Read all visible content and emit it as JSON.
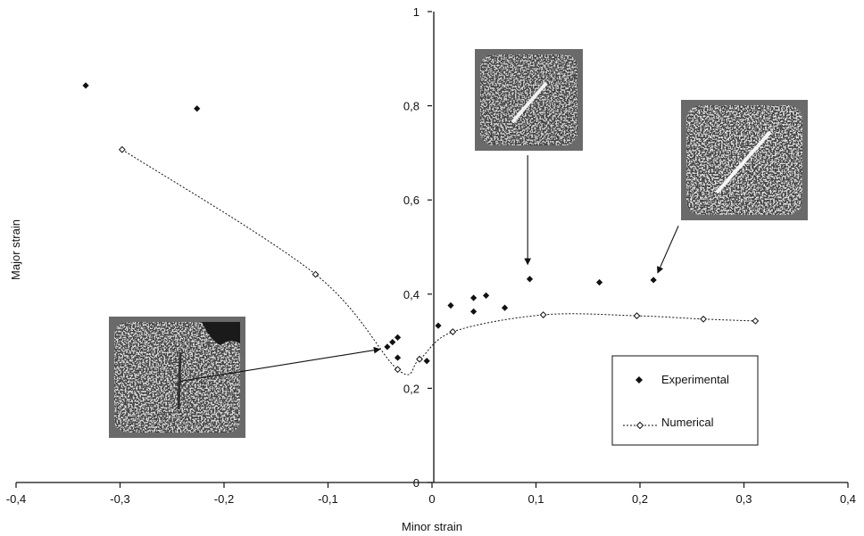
{
  "chart_data": {
    "type": "scatter",
    "title": "",
    "xlabel": "Minor strain",
    "ylabel": "Major strain",
    "xlim": [
      -0.4,
      0.4
    ],
    "ylim": [
      0,
      1
    ],
    "x_ticks": [
      -0.4,
      -0.3,
      -0.2,
      -0.1,
      0,
      0.1,
      0.2,
      0.3,
      0.4
    ],
    "x_tick_labels": [
      "-0,4",
      "-0,3",
      "-0,2",
      "-0,1",
      "0",
      "0,1",
      "0,2",
      "0,3",
      "0,4"
    ],
    "y_ticks": [
      0,
      0.2,
      0.4,
      0.6,
      0.8,
      1
    ],
    "y_tick_labels": [
      "0",
      "0,2",
      "0,4",
      "0,6",
      "0,8",
      "1"
    ],
    "grid": false,
    "legend_position": "bottom-right",
    "series": [
      {
        "name": "Experimental",
        "style": "markers",
        "marker": "filled-diamond",
        "color": "#111111",
        "points": [
          [
            -0.333,
            0.843
          ],
          [
            -0.226,
            0.794
          ],
          [
            -0.043,
            0.288
          ],
          [
            -0.038,
            0.298
          ],
          [
            -0.033,
            0.308
          ],
          [
            -0.033,
            0.265
          ],
          [
            -0.005,
            0.258
          ],
          [
            0.006,
            0.333
          ],
          [
            0.018,
            0.376
          ],
          [
            0.04,
            0.392
          ],
          [
            0.052,
            0.397
          ],
          [
            0.04,
            0.363
          ],
          [
            0.07,
            0.371
          ],
          [
            0.094,
            0.432
          ],
          [
            0.161,
            0.425
          ],
          [
            0.213,
            0.43
          ]
        ]
      },
      {
        "name": "Numerical",
        "style": "dotted-line-open-markers",
        "marker": "open-diamond",
        "color": "#111111",
        "points": [
          [
            -0.298,
            0.707
          ],
          [
            -0.112,
            0.442
          ],
          [
            -0.033,
            0.24
          ],
          [
            -0.012,
            0.262
          ],
          [
            0.02,
            0.32
          ],
          [
            0.107,
            0.356
          ],
          [
            0.197,
            0.354
          ],
          [
            0.261,
            0.347
          ],
          [
            0.311,
            0.343
          ]
        ]
      }
    ],
    "annotations": [
      {
        "name": "specimen-photo-left",
        "from": [
          -0.242,
          0.215
        ],
        "to": [
          -0.05,
          0.283
        ]
      },
      {
        "name": "specimen-photo-top",
        "from": [
          0.092,
          0.695
        ],
        "to": [
          0.092,
          0.463
        ]
      },
      {
        "name": "specimen-photo-right",
        "from": [
          0.237,
          0.545
        ],
        "to": [
          0.217,
          0.445
        ]
      }
    ]
  },
  "legend": {
    "experimental_label": "Experimental",
    "numerical_label": "Numerical"
  },
  "colors": {
    "ink": "#111111",
    "photo_frame": "#8f8f8f",
    "photo_surface": "#d9d9d9"
  }
}
